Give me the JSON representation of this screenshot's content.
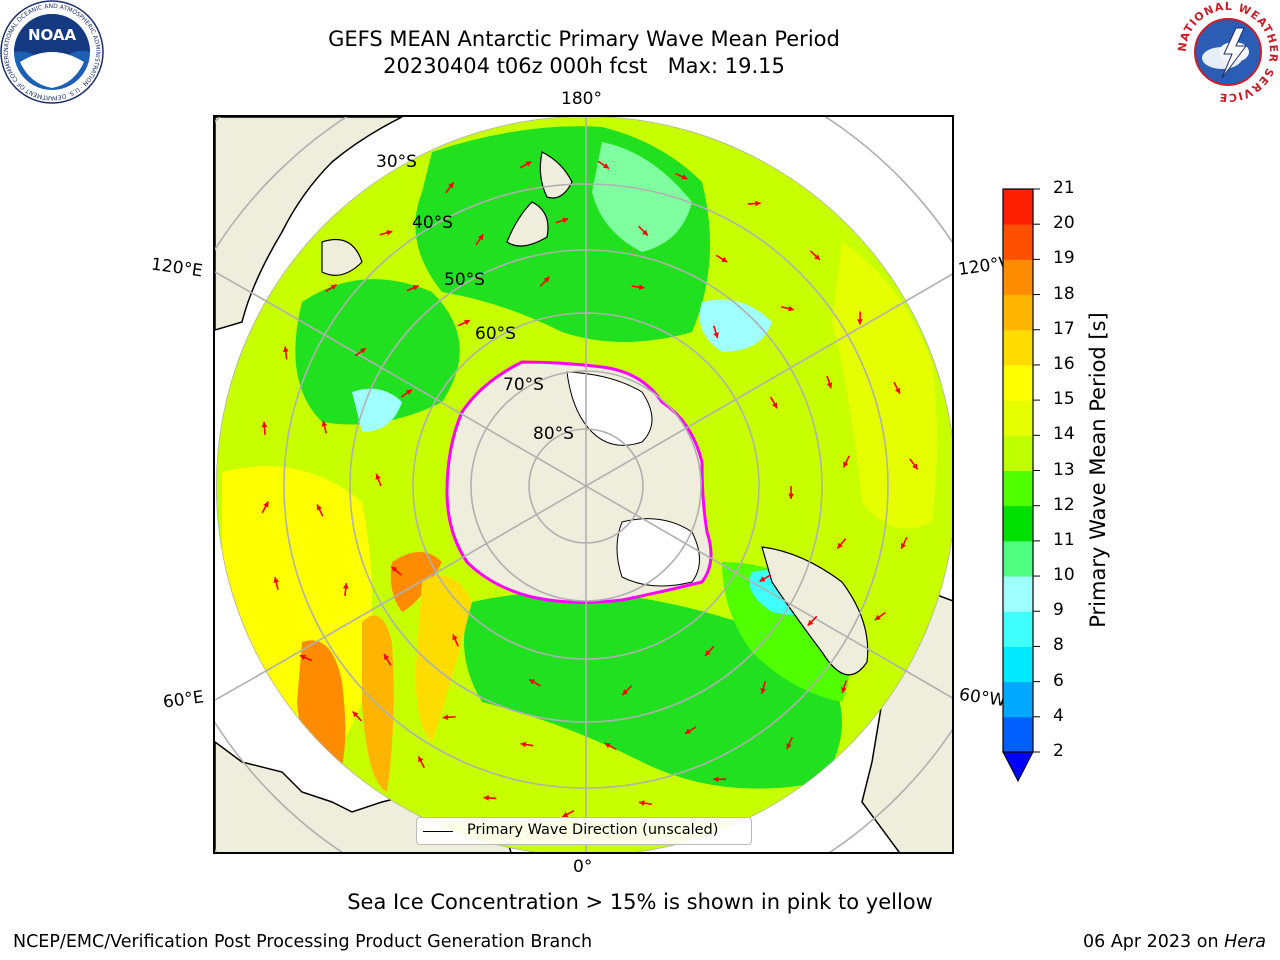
{
  "title": {
    "line1": "GEFS MEAN Antarctic Primary Wave Mean Period",
    "line2": "20230404 t06z 000h fcst   Max: 19.15"
  },
  "map": {
    "projection": "south-polar-stereographic",
    "longitude_labels": {
      "top": "180°",
      "bottom": "0°",
      "left_upper": "120°E",
      "left_lower": "60°E",
      "right_upper": "120°W",
      "right_lower": "60°W"
    },
    "latitude_labels": [
      "30°S",
      "40°S",
      "50°S",
      "60°S",
      "70°S",
      "80°S"
    ],
    "legend_text": "Primary Wave Direction (unscaled)",
    "arrow_color": "#ff0000",
    "land_color": "#efeedc",
    "sea_ice_colors": [
      "#ff00ff",
      "#ffa500",
      "#ffff00"
    ]
  },
  "colorbar": {
    "label": "Primary Wave Mean Period [s]",
    "ticks": [
      "2",
      "4",
      "6",
      "8",
      "9",
      "10",
      "11",
      "12",
      "13",
      "14",
      "15",
      "16",
      "17",
      "18",
      "19",
      "20",
      "21"
    ],
    "colors": [
      "#0060ff",
      "#00a8ff",
      "#00e8ff",
      "#40ffff",
      "#a0ffff",
      "#50ff80",
      "#00e000",
      "#50ff00",
      "#c0ff00",
      "#e6ff00",
      "#ffff00",
      "#ffdc00",
      "#ffb400",
      "#ff8c00",
      "#ff5000",
      "#ff2000"
    ],
    "extend_color": "#0000ff"
  },
  "ice_note": "Sea Ice Concentration > 15% is shown in pink to yellow",
  "footer": {
    "credit": "NCEP/EMC/Verification Post Processing Product Generation Branch",
    "date": "06 Apr 2023 on",
    "host": "Hera"
  },
  "logos": {
    "left": {
      "name": "NOAA",
      "ring_text": "NATIONAL OCEANIC AND ATMOSPHERIC ADMINISTRATION · U.S. DEPARTMENT OF COMMERCE"
    },
    "right": {
      "ring_text": "NATIONAL WEATHER SERVICE"
    }
  }
}
